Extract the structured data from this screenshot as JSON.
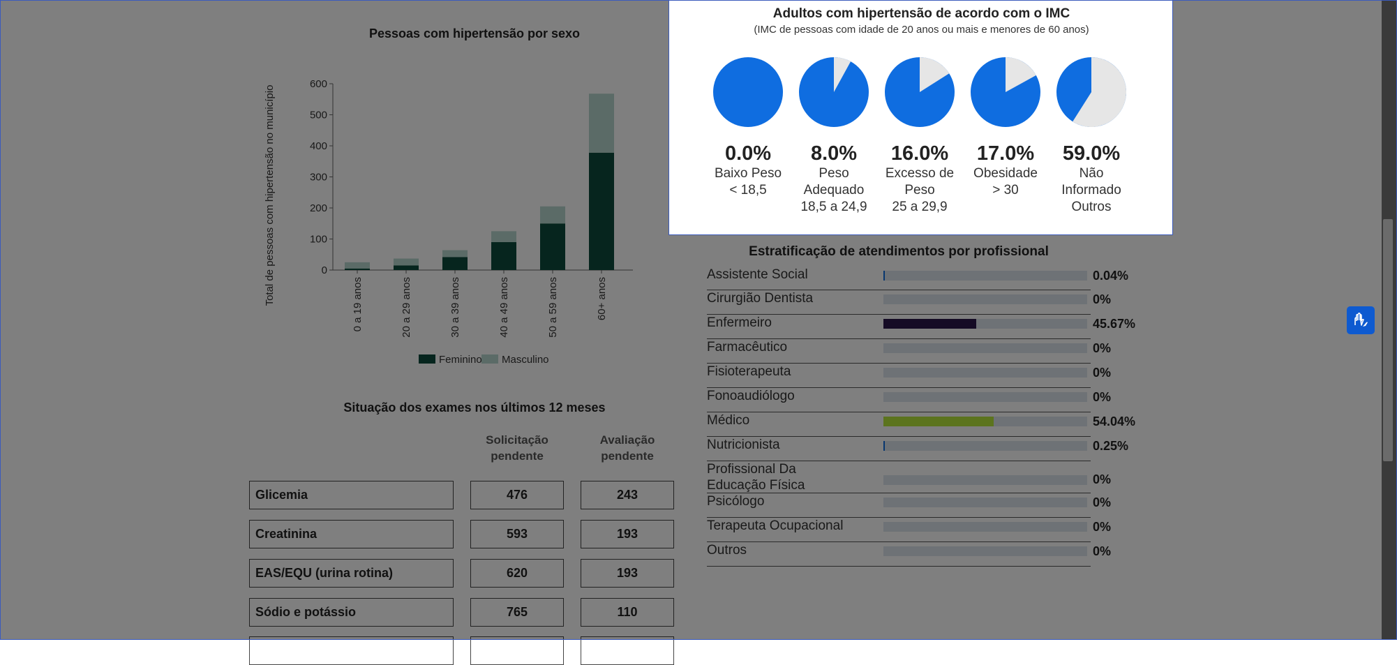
{
  "sex_chart": {
    "title": "Pessoas com hipertensão por sexo",
    "ylabel": "Total de pessoas com hipertensão no município",
    "chart_data": {
      "type": "bar",
      "stacked": true,
      "title": "Pessoas com hipertensão por sexo",
      "ylabel": "Total de pessoas com hipertensão no município",
      "ylim": [
        0,
        600
      ],
      "yticks": [
        0,
        100,
        200,
        300,
        400,
        500,
        600
      ],
      "categories": [
        "0 a 19 anos",
        "20 a 29 anos",
        "30 a 39 anos",
        "40 a 49 anos",
        "50 a 59 anos",
        "60+ anos"
      ],
      "series": [
        {
          "name": "Feminino",
          "values": [
            5,
            15,
            42,
            90,
            150,
            378
          ]
        },
        {
          "name": "Masculino",
          "values": [
            20,
            22,
            22,
            35,
            55,
            190
          ]
        }
      ],
      "legend": "bottom"
    }
  },
  "colors": {
    "feminino": "#0d4a3c",
    "masculino": "#b6d6ce",
    "pie_blue": "#0f6de0",
    "pie_gray": "#e6e6e6",
    "enfermeiro": "#2b164a",
    "medico": "#b9e93c",
    "small_bar": "#0f6de0"
  },
  "exams": {
    "title": "Situação dos exames nos últimos 12 meses",
    "col1": "Solicitação pendente",
    "col2": "Avaliação pendente",
    "rows": [
      {
        "name": "Glicemia",
        "solicitacao": "476",
        "avaliacao": "243"
      },
      {
        "name": "Creatinina",
        "solicitacao": "593",
        "avaliacao": "193"
      },
      {
        "name": "EAS/EQU (urina rotina)",
        "solicitacao": "620",
        "avaliacao": "193"
      },
      {
        "name": "Sódio e potássio",
        "solicitacao": "765",
        "avaliacao": "110"
      }
    ]
  },
  "profissionais": {
    "title": "Estratificação de atendimentos por profissional",
    "items": [
      {
        "label": "Assistente Social",
        "value": "0.04%",
        "pct": 0.04
      },
      {
        "label": "Cirurgião Dentista",
        "value": "0%",
        "pct": 0
      },
      {
        "label": "Enfermeiro",
        "value": "45.67%",
        "pct": 45.67
      },
      {
        "label": "Farmacêutico",
        "value": "0%",
        "pct": 0
      },
      {
        "label": "Fisioterapeuta",
        "value": "0%",
        "pct": 0
      },
      {
        "label": "Fonoaudiólogo",
        "value": "0%",
        "pct": 0
      },
      {
        "label": "Médico",
        "value": "54.04%",
        "pct": 54.04
      },
      {
        "label": "Nutricionista",
        "value": "0.25%",
        "pct": 0.25
      },
      {
        "label": "Profissional Da Educação Física",
        "value": "0%",
        "pct": 0
      },
      {
        "label": "Psicólogo",
        "value": "0%",
        "pct": 0
      },
      {
        "label": "Terapeuta Ocupacional",
        "value": "0%",
        "pct": 0
      },
      {
        "label": "Outros",
        "value": "0%",
        "pct": 0
      }
    ]
  },
  "imc_modal": {
    "title": "Adultos com hipertensão de acordo com o IMC",
    "subtitle": "(IMC de pessoas com idade de 20 anos ou mais e menores de 60 anos)",
    "chart_data": {
      "type": "pie",
      "items": [
        {
          "pct": "0.0%",
          "gray_fraction": 0.0,
          "label1": "Baixo Peso",
          "label2": "< 18,5",
          "label3": ""
        },
        {
          "pct": "8.0%",
          "gray_fraction": 0.08,
          "label1": "Peso",
          "label2": "Adequado",
          "label3": "18,5 a 24,9"
        },
        {
          "pct": "16.0%",
          "gray_fraction": 0.16,
          "label1": "Excesso de",
          "label2": "Peso",
          "label3": "25 a 29,9"
        },
        {
          "pct": "17.0%",
          "gray_fraction": 0.17,
          "label1": "Obesidade",
          "label2": "> 30",
          "label3": ""
        },
        {
          "pct": "59.0%",
          "gray_fraction": 0.59,
          "label1": "Não",
          "label2": "Informado",
          "label3": "Outros"
        }
      ]
    }
  }
}
